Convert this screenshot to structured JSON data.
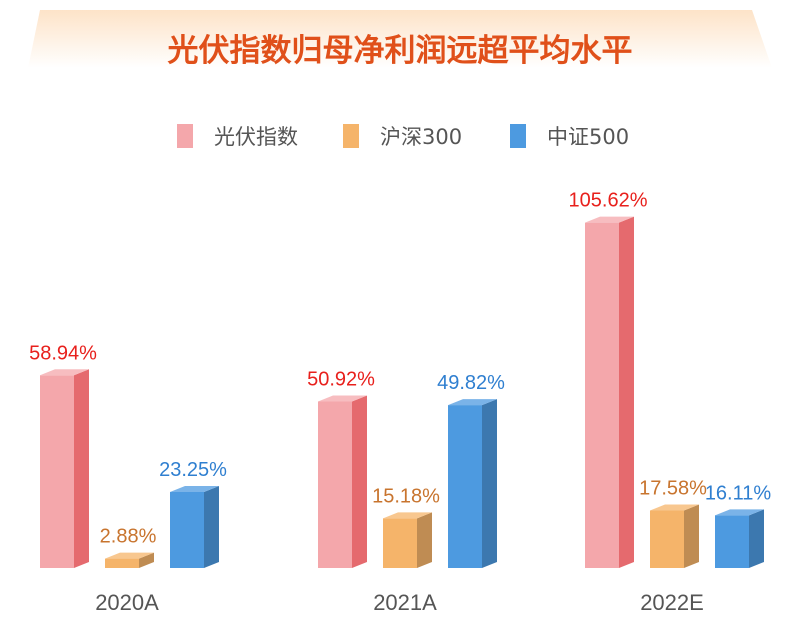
{
  "chart_data": {
    "type": "bar",
    "title": "光伏指数归母净利润远超平均水平",
    "categories": [
      "2020A",
      "2021A",
      "2022E"
    ],
    "series": [
      {
        "name": "光伏指数",
        "values": [
          58.94,
          50.92,
          105.62
        ],
        "labels": [
          "58.94%",
          "50.92%",
          "105.62%"
        ],
        "color": "#f4a7ab",
        "label_color": "#e8201c"
      },
      {
        "name": "沪深300",
        "values": [
          2.88,
          15.18,
          17.58
        ],
        "labels": [
          "2.88%",
          "15.18%",
          "17.58%"
        ],
        "color": "#f5b46a",
        "label_color": "#c8742e"
      },
      {
        "name": "中证500",
        "values": [
          23.25,
          49.82,
          16.11
        ],
        "labels": [
          "23.25%",
          "49.82%",
          "16.11%"
        ],
        "color": "#4d9ae0",
        "label_color": "#2f7fd0"
      }
    ],
    "legend_position": "top",
    "grid": false,
    "ylim": [
      0,
      110
    ],
    "style": "3d-bar"
  }
}
